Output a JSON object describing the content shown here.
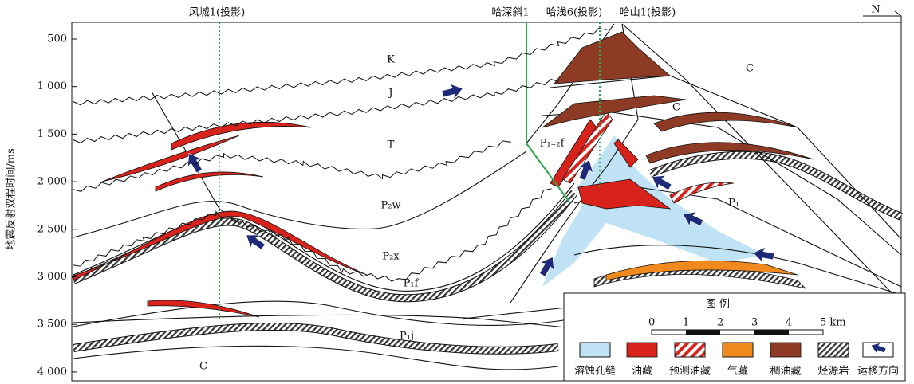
{
  "wells": [
    "风城1(投影)",
    "哈深斜1",
    "哈浅6(投影)",
    "哈山1(投影)"
  ],
  "north": "N",
  "y_axis": {
    "title": "地震反射双程时间/ms",
    "ticks": [
      {
        "value": 500,
        "label": "500"
      },
      {
        "value": 1000,
        "label": "1 000"
      },
      {
        "value": 1500,
        "label": "1 500"
      },
      {
        "value": 2000,
        "label": "2 000"
      },
      {
        "value": 2500,
        "label": "2 500"
      },
      {
        "value": 3000,
        "label": "3 000"
      },
      {
        "value": 3500,
        "label": "3 500"
      },
      {
        "value": 4000,
        "label": "4 000"
      }
    ]
  },
  "strata": [
    "K",
    "J",
    "T",
    "P₂w",
    "P₂x",
    "P₁f",
    "P₁j",
    "C",
    "C",
    "C",
    "P₁",
    "P₁₋₂f"
  ],
  "legend": {
    "title": "图 例",
    "scale": [
      "0",
      "1",
      "2",
      "3",
      "4",
      "5 km"
    ],
    "items": [
      "溶蚀孔缝",
      "油藏",
      "预测油藏",
      "气藏",
      "稠油藏",
      "烃源岩",
      "运移方向"
    ]
  }
}
